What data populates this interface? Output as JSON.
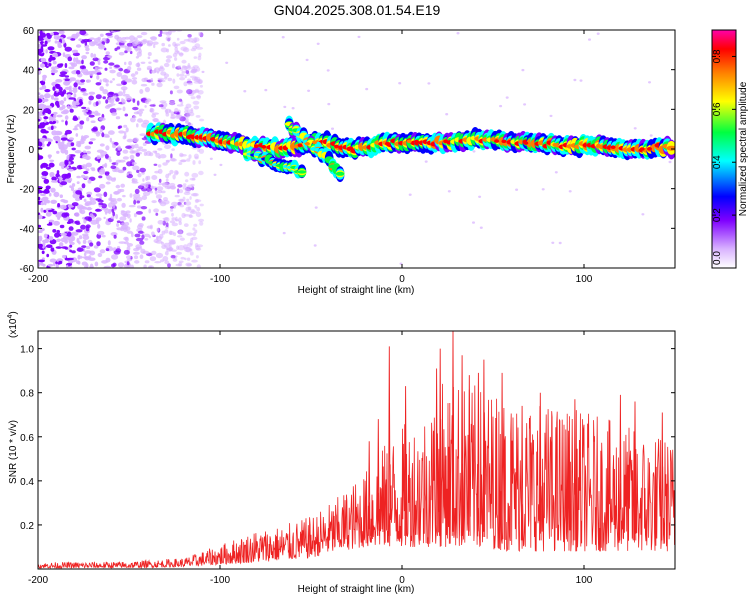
{
  "title": "GN04.2025.308.01.54.E19",
  "colors": {
    "snr_line": "#ee2222",
    "frame": "#000000",
    "background": "#ffffff"
  },
  "chart_data": [
    {
      "type": "heatmap",
      "name": "spectrogram",
      "xlabel": "Height of straight line (km)",
      "ylabel": "Frequency (Hz)",
      "xlim": [
        -200,
        150
      ],
      "ylim": [
        -60,
        60
      ],
      "x_ticks": [
        -200,
        -100,
        0,
        100
      ],
      "y_ticks": [
        -60,
        -40,
        -20,
        0,
        20,
        40,
        60
      ],
      "colorbar": {
        "label": "Normalized spectral amplitude",
        "range": [
          0,
          0.9
        ],
        "ticks": [
          "0.0",
          "0.2",
          "0.4",
          "0.6",
          "0.8"
        ],
        "colormap": [
          "#ffffff",
          "#d9b3ff",
          "#7f00ff",
          "#0000ff",
          "#00ffff",
          "#00ff40",
          "#ffff00",
          "#ff8000",
          "#ff0000",
          "#ff00aa"
        ]
      },
      "noise_region_x": [
        -200,
        -110
      ],
      "main_ridge": [
        {
          "x": -135,
          "f": 8
        },
        {
          "x": -120,
          "f": 7
        },
        {
          "x": -105,
          "f": 5
        },
        {
          "x": -95,
          "f": 4
        },
        {
          "x": -85,
          "f": 2
        },
        {
          "x": -75,
          "f": 1
        },
        {
          "x": -65,
          "f": 0
        },
        {
          "x": -55,
          "f": 2
        },
        {
          "x": -45,
          "f": 4
        },
        {
          "x": -35,
          "f": 1
        },
        {
          "x": -25,
          "f": 0
        },
        {
          "x": -15,
          "f": 2
        },
        {
          "x": -5,
          "f": 3
        },
        {
          "x": 5,
          "f": 4
        },
        {
          "x": 15,
          "f": 3
        },
        {
          "x": 25,
          "f": 4
        },
        {
          "x": 35,
          "f": 5
        },
        {
          "x": 45,
          "f": 4
        },
        {
          "x": 55,
          "f": 4
        },
        {
          "x": 65,
          "f": 3
        },
        {
          "x": 75,
          "f": 3
        },
        {
          "x": 85,
          "f": 2
        },
        {
          "x": 95,
          "f": 2
        },
        {
          "x": 105,
          "f": 2
        },
        {
          "x": 115,
          "f": 1
        },
        {
          "x": 125,
          "f": 0
        },
        {
          "x": 135,
          "f": 0
        },
        {
          "x": 145,
          "f": 1
        }
      ],
      "descending_branch": [
        {
          "x": -62,
          "f": 12
        },
        {
          "x": -52,
          "f": 4
        },
        {
          "x": -42,
          "f": -4
        },
        {
          "x": -34,
          "f": -12
        }
      ],
      "lower_branch": [
        {
          "x": -85,
          "f": -2
        },
        {
          "x": -75,
          "f": -5
        },
        {
          "x": -65,
          "f": -9
        },
        {
          "x": -55,
          "f": -11
        }
      ]
    },
    {
      "type": "line",
      "name": "snr",
      "xlabel": "Height of straight line (km)",
      "ylabel": "SNR (10 * v/v)",
      "scale_label": "(x10",
      "scale_exp": "4",
      "scale_close": ")",
      "xlim": [
        -200,
        150
      ],
      "ylim": [
        0,
        1.08
      ],
      "x_ticks": [
        -200,
        -100,
        0,
        100
      ],
      "y_ticks": [
        "0.2",
        "0.4",
        "0.6",
        "0.8",
        "1.0"
      ],
      "y_tick_values": [
        0.2,
        0.4,
        0.6,
        0.8,
        1.0
      ],
      "envelope": [
        {
          "x": -200,
          "lo": 0.005,
          "hi": 0.03
        },
        {
          "x": -150,
          "lo": 0.005,
          "hi": 0.035
        },
        {
          "x": -120,
          "lo": 0.01,
          "hi": 0.05
        },
        {
          "x": -100,
          "lo": 0.02,
          "hi": 0.11
        },
        {
          "x": -80,
          "lo": 0.03,
          "hi": 0.18
        },
        {
          "x": -65,
          "lo": 0.04,
          "hi": 0.2
        },
        {
          "x": -50,
          "lo": 0.05,
          "hi": 0.24
        },
        {
          "x": -35,
          "lo": 0.08,
          "hi": 0.33
        },
        {
          "x": -20,
          "lo": 0.1,
          "hi": 0.45
        },
        {
          "x": -5,
          "lo": 0.1,
          "hi": 0.62
        },
        {
          "x": 10,
          "lo": 0.1,
          "hi": 0.72
        },
        {
          "x": 25,
          "lo": 0.1,
          "hi": 0.88
        },
        {
          "x": 40,
          "lo": 0.1,
          "hi": 0.84
        },
        {
          "x": 60,
          "lo": 0.08,
          "hi": 0.8
        },
        {
          "x": 80,
          "lo": 0.08,
          "hi": 0.76
        },
        {
          "x": 100,
          "lo": 0.08,
          "hi": 0.72
        },
        {
          "x": 120,
          "lo": 0.08,
          "hi": 0.66
        },
        {
          "x": 150,
          "lo": 0.08,
          "hi": 0.6
        }
      ],
      "spikes": [
        {
          "x": -7,
          "y": 1.01
        },
        {
          "x": 21,
          "y": 1.0
        },
        {
          "x": 28,
          "y": 1.08
        },
        {
          "x": 33,
          "y": 0.97
        },
        {
          "x": 19,
          "y": 0.91
        },
        {
          "x": 37,
          "y": 0.88
        },
        {
          "x": 45,
          "y": 0.95
        },
        {
          "x": 42,
          "y": 0.89
        },
        {
          "x": 55,
          "y": 0.89
        },
        {
          "x": 2,
          "y": 0.83
        },
        {
          "x": 76,
          "y": 0.8
        },
        {
          "x": 66,
          "y": 0.74
        },
        {
          "x": 120,
          "y": 0.79
        },
        {
          "x": 128,
          "y": 0.76
        },
        {
          "x": 143,
          "y": 0.71
        },
        {
          "x": -13,
          "y": 0.68
        },
        {
          "x": -18,
          "y": 0.58
        },
        {
          "x": 95,
          "y": 0.77
        }
      ]
    }
  ]
}
